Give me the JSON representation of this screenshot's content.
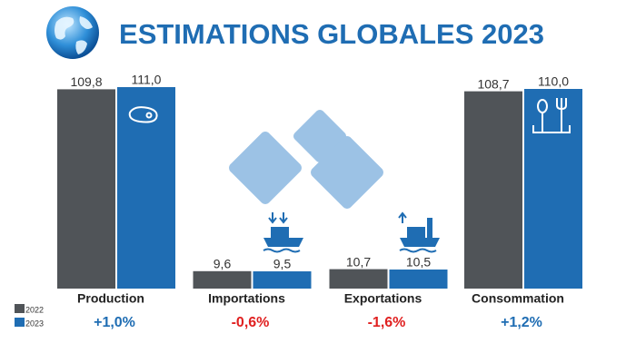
{
  "chart_data": {
    "type": "bar",
    "title": "ESTIMATIONS GLOBALES 2023",
    "categories": [
      "Production",
      "Importations",
      "Exportations",
      "Consommation"
    ],
    "series": [
      {
        "name": "2022",
        "color": "#505458",
        "values": [
          109.8,
          9.6,
          10.7,
          108.7
        ],
        "value_labels": [
          "109,8",
          "9,6",
          "10,7",
          "108,7"
        ]
      },
      {
        "name": "2023",
        "color": "#1f6db3",
        "values": [
          111.0,
          9.5,
          10.5,
          110.0
        ],
        "value_labels": [
          "111,0",
          "9,5",
          "10,5",
          "110,0"
        ]
      }
    ],
    "changes": [
      {
        "label": "+1,0%",
        "color": "#1f6db3"
      },
      {
        "label": "-0,6%",
        "color": "#e02020"
      },
      {
        "label": "-1,6%",
        "color": "#e02020"
      },
      {
        "label": "+1,2%",
        "color": "#1f6db3"
      }
    ],
    "logo": [
      "3",
      "3",
      "3"
    ]
  }
}
